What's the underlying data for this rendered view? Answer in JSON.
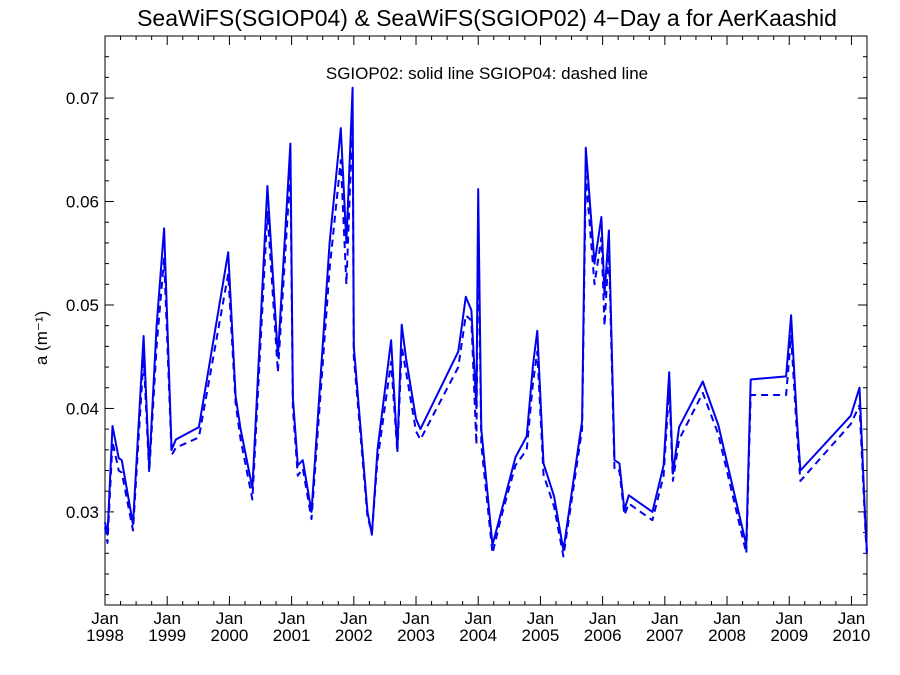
{
  "chart_data": {
    "type": "line",
    "title": "SeaWiFS(SGIOP04) & SeaWiFS(SGIOP02) 4−Day a for AerKaashid",
    "annotation": "SGIOP02: solid line   SGIOP04: dashed line",
    "ylabel": "a (m⁻¹)",
    "xlabel": "",
    "xlim": [
      1998.0,
      2010.25
    ],
    "ylim": [
      0.021,
      0.076
    ],
    "grid": false,
    "y_ticks": [
      {
        "value": 0.03,
        "label": "0.03"
      },
      {
        "value": 0.04,
        "label": "0.04"
      },
      {
        "value": 0.05,
        "label": "0.05"
      },
      {
        "value": 0.06,
        "label": "0.06"
      },
      {
        "value": 0.07,
        "label": "0.07"
      }
    ],
    "x_ticks": [
      {
        "value": 1998,
        "month": "Jan",
        "year": "1998"
      },
      {
        "value": 1999,
        "month": "Jan",
        "year": "1999"
      },
      {
        "value": 2000,
        "month": "Jan",
        "year": "2000"
      },
      {
        "value": 2001,
        "month": "Jan",
        "year": "2001"
      },
      {
        "value": 2002,
        "month": "Jan",
        "year": "2002"
      },
      {
        "value": 2003,
        "month": "Jan",
        "year": "2003"
      },
      {
        "value": 2004,
        "month": "Jan",
        "year": "2004"
      },
      {
        "value": 2005,
        "month": "Jan",
        "year": "2005"
      },
      {
        "value": 2006,
        "month": "Jan",
        "year": "2006"
      },
      {
        "value": 2007,
        "month": "Jan",
        "year": "2007"
      },
      {
        "value": 2008,
        "month": "Jan",
        "year": "2008"
      },
      {
        "value": 2009,
        "month": "Jan",
        "year": "2009"
      },
      {
        "value": 2010,
        "month": "Jan",
        "year": "2010"
      }
    ],
    "series": [
      {
        "style": "solid",
        "color": "#0000ee",
        "points": [
          [
            1998.0,
            0.029
          ],
          [
            1998.04,
            0.0278
          ],
          [
            1998.12,
            0.0383
          ],
          [
            1998.22,
            0.0352
          ],
          [
            1998.27,
            0.035
          ],
          [
            1998.45,
            0.0288
          ],
          [
            1998.62,
            0.047
          ],
          [
            1998.71,
            0.0342
          ],
          [
            1998.83,
            0.048
          ],
          [
            1998.95,
            0.0574
          ],
          [
            1999.07,
            0.036
          ],
          [
            1999.14,
            0.037
          ],
          [
            1999.51,
            0.0382
          ],
          [
            1999.98,
            0.0551
          ],
          [
            2000.1,
            0.0412
          ],
          [
            2000.18,
            0.038
          ],
          [
            2000.37,
            0.0323
          ],
          [
            2000.61,
            0.0615
          ],
          [
            2000.78,
            0.045
          ],
          [
            2000.98,
            0.0656
          ],
          [
            2001.02,
            0.041
          ],
          [
            2001.1,
            0.0345
          ],
          [
            2001.18,
            0.035
          ],
          [
            2001.32,
            0.03
          ],
          [
            2001.61,
            0.056
          ],
          [
            2001.79,
            0.0671
          ],
          [
            2001.88,
            0.056
          ],
          [
            2001.98,
            0.071
          ],
          [
            2002.0,
            0.046
          ],
          [
            2002.22,
            0.03
          ],
          [
            2002.29,
            0.0278
          ],
          [
            2002.38,
            0.036
          ],
          [
            2002.6,
            0.0466
          ],
          [
            2002.7,
            0.036
          ],
          [
            2002.77,
            0.0481
          ],
          [
            2002.84,
            0.0448
          ],
          [
            2003.0,
            0.039
          ],
          [
            2003.07,
            0.038
          ],
          [
            2003.68,
            0.0455
          ],
          [
            2003.8,
            0.0508
          ],
          [
            2003.89,
            0.0495
          ],
          [
            2003.97,
            0.04
          ],
          [
            2004.0,
            0.0612
          ],
          [
            2004.05,
            0.038
          ],
          [
            2004.23,
            0.0268
          ],
          [
            2004.37,
            0.03
          ],
          [
            2004.6,
            0.0353
          ],
          [
            2004.78,
            0.0373
          ],
          [
            2004.88,
            0.0442
          ],
          [
            2004.95,
            0.0475
          ],
          [
            2005.05,
            0.0347
          ],
          [
            2005.22,
            0.0315
          ],
          [
            2005.37,
            0.0263
          ],
          [
            2005.67,
            0.0388
          ],
          [
            2005.73,
            0.0652
          ],
          [
            2005.87,
            0.054
          ],
          [
            2005.98,
            0.0585
          ],
          [
            2006.03,
            0.051
          ],
          [
            2006.1,
            0.0572
          ],
          [
            2006.19,
            0.035
          ],
          [
            2006.27,
            0.0347
          ],
          [
            2006.35,
            0.0302
          ],
          [
            2006.42,
            0.0316
          ],
          [
            2006.8,
            0.03
          ],
          [
            2006.98,
            0.0345
          ],
          [
            2007.07,
            0.0435
          ],
          [
            2007.13,
            0.0337
          ],
          [
            2007.23,
            0.0382
          ],
          [
            2007.61,
            0.0426
          ],
          [
            2007.86,
            0.0384
          ],
          [
            2008.31,
            0.0268
          ],
          [
            2008.38,
            0.0428
          ],
          [
            2008.95,
            0.0431
          ],
          [
            2009.03,
            0.049
          ],
          [
            2009.12,
            0.0392
          ],
          [
            2009.18,
            0.034
          ],
          [
            2009.99,
            0.0393
          ],
          [
            2010.13,
            0.042
          ],
          [
            2010.23,
            0.028
          ],
          [
            2010.25,
            0.0262
          ]
        ]
      },
      {
        "style": "dashed",
        "color": "#0000ee",
        "points": [
          [
            1998.0,
            0.0285
          ],
          [
            1998.04,
            0.027
          ],
          [
            1998.12,
            0.0368
          ],
          [
            1998.22,
            0.034
          ],
          [
            1998.27,
            0.0338
          ],
          [
            1998.45,
            0.0282
          ],
          [
            1998.62,
            0.045
          ],
          [
            1998.71,
            0.0338
          ],
          [
            1998.83,
            0.046
          ],
          [
            1998.95,
            0.0545
          ],
          [
            1999.07,
            0.0355
          ],
          [
            1999.14,
            0.0362
          ],
          [
            1999.51,
            0.0372
          ],
          [
            1999.98,
            0.053
          ],
          [
            2000.1,
            0.0405
          ],
          [
            2000.18,
            0.037
          ],
          [
            2000.37,
            0.0312
          ],
          [
            2000.61,
            0.059
          ],
          [
            2000.78,
            0.0435
          ],
          [
            2000.98,
            0.063
          ],
          [
            2001.02,
            0.04
          ],
          [
            2001.1,
            0.0335
          ],
          [
            2001.18,
            0.0342
          ],
          [
            2001.32,
            0.0293
          ],
          [
            2001.61,
            0.0535
          ],
          [
            2001.79,
            0.064
          ],
          [
            2001.88,
            0.052
          ],
          [
            2001.98,
            0.068
          ],
          [
            2002.0,
            0.045
          ],
          [
            2002.22,
            0.0295
          ],
          [
            2002.29,
            0.028
          ],
          [
            2002.38,
            0.035
          ],
          [
            2002.6,
            0.0445
          ],
          [
            2002.7,
            0.0357
          ],
          [
            2002.77,
            0.046
          ],
          [
            2002.84,
            0.0435
          ],
          [
            2003.0,
            0.0378
          ],
          [
            2003.07,
            0.037
          ],
          [
            2003.68,
            0.044
          ],
          [
            2003.8,
            0.049
          ],
          [
            2003.89,
            0.0485
          ],
          [
            2003.97,
            0.0365
          ],
          [
            2004.0,
            0.059
          ],
          [
            2004.05,
            0.0365
          ],
          [
            2004.23,
            0.026
          ],
          [
            2004.37,
            0.0295
          ],
          [
            2004.6,
            0.0345
          ],
          [
            2004.78,
            0.036
          ],
          [
            2004.88,
            0.0425
          ],
          [
            2004.95,
            0.0455
          ],
          [
            2005.05,
            0.0336
          ],
          [
            2005.22,
            0.0305
          ],
          [
            2005.37,
            0.0257
          ],
          [
            2005.67,
            0.038
          ],
          [
            2005.73,
            0.0625
          ],
          [
            2005.87,
            0.052
          ],
          [
            2005.98,
            0.0565
          ],
          [
            2006.03,
            0.048
          ],
          [
            2006.1,
            0.0555
          ],
          [
            2006.19,
            0.034
          ],
          [
            2006.27,
            0.034
          ],
          [
            2006.35,
            0.0297
          ],
          [
            2006.42,
            0.0308
          ],
          [
            2006.8,
            0.0292
          ],
          [
            2006.98,
            0.0335
          ],
          [
            2007.07,
            0.042
          ],
          [
            2007.13,
            0.033
          ],
          [
            2007.23,
            0.037
          ],
          [
            2007.61,
            0.0415
          ],
          [
            2007.86,
            0.0375
          ],
          [
            2008.31,
            0.026
          ],
          [
            2008.38,
            0.0413
          ],
          [
            2008.95,
            0.0413
          ],
          [
            2009.03,
            0.047
          ],
          [
            2009.12,
            0.038
          ],
          [
            2009.18,
            0.033
          ],
          [
            2009.99,
            0.0385
          ],
          [
            2010.13,
            0.0403
          ],
          [
            2010.23,
            0.0275
          ],
          [
            2010.25,
            0.0258
          ]
        ]
      }
    ]
  }
}
